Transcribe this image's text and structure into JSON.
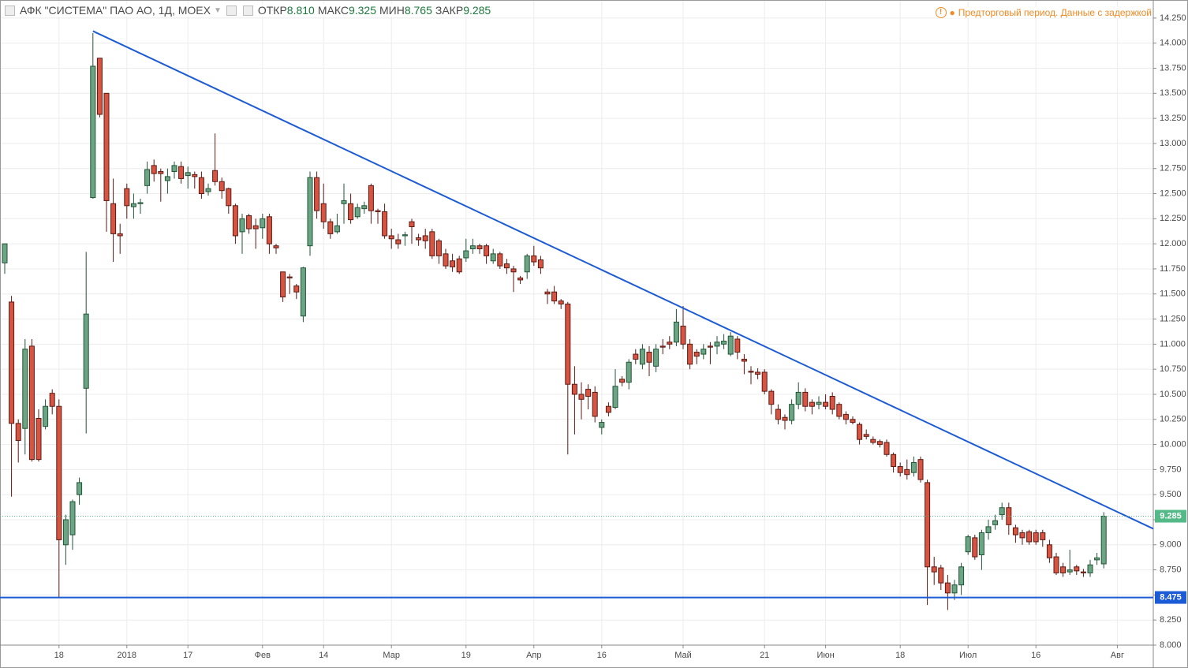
{
  "chart_data": {
    "type": "candlestick",
    "title": "АФК \"СИСТЕМА\" ПАО АО, 1Д, МОЕХ",
    "stats": [
      {
        "name": "ОТКР",
        "value": {
          "value": 8.81,
          "label": "8.810"
        }
      },
      {
        "name": "МАКС",
        "value": {
          "value": 9.325,
          "label": "9.325"
        }
      },
      {
        "name": "МИН",
        "value": {
          "value": 8.765,
          "label": "8.765"
        }
      },
      {
        "name": "ЗАКР",
        "value": {
          "value": 9.285,
          "label": "9.285"
        }
      }
    ],
    "notice": "Предторговый период. Данные с задержкой",
    "categories": [
      null,
      null,
      null,
      null,
      null,
      null,
      null,
      null,
      "18",
      null,
      null,
      null,
      null,
      null,
      null,
      null,
      null,
      null,
      "2018",
      null,
      null,
      null,
      null,
      null,
      null,
      null,
      null,
      "17",
      null,
      null,
      null,
      null,
      null,
      null,
      null,
      null,
      null,
      null,
      "Фев",
      null,
      null,
      null,
      null,
      null,
      null,
      null,
      null,
      "14",
      null,
      null,
      null,
      null,
      null,
      null,
      null,
      null,
      null,
      "Мар",
      null,
      null,
      null,
      null,
      null,
      null,
      null,
      null,
      null,
      null,
      "19",
      null,
      null,
      null,
      null,
      null,
      null,
      null,
      null,
      null,
      "Апр",
      null,
      null,
      null,
      null,
      null,
      null,
      null,
      null,
      null,
      "16",
      null,
      null,
      null,
      null,
      null,
      null,
      null,
      null,
      null,
      null,
      null,
      "Май",
      null,
      null,
      null,
      null,
      null,
      null,
      null,
      null,
      null,
      null,
      null,
      "21",
      null,
      null,
      null,
      null,
      null,
      null,
      null,
      null,
      "Июн",
      null,
      null,
      null,
      null,
      null,
      null,
      null,
      null,
      null,
      null,
      "18",
      null,
      null,
      null,
      null,
      null,
      null,
      null,
      null,
      null,
      "Июл",
      null,
      null,
      null,
      null,
      null,
      null,
      null,
      null,
      null,
      "16",
      null,
      null,
      null,
      null,
      null,
      null,
      null,
      null,
      null,
      null,
      null,
      "Авг",
      null,
      null,
      null,
      null,
      null
    ],
    "open": [
      11.81,
      11.42,
      10.21,
      10.16,
      10.98,
      10.26,
      10.18,
      10.51,
      10.38,
      9.0,
      9.1,
      9.5,
      10.56,
      12.46,
      13.85,
      13.5,
      12.4,
      12.1,
      12.55,
      12.37,
      12.4,
      12.58,
      12.78,
      12.72,
      12.63,
      12.72,
      12.77,
      12.68,
      12.69,
      12.66,
      12.52,
      12.73,
      12.62,
      12.55,
      12.38,
      12.12,
      12.28,
      12.18,
      12.16,
      12.27,
      11.98,
      11.72,
      11.67,
      11.58,
      11.28,
      11.98,
      12.66,
      12.4,
      12.22,
      12.12,
      12.4,
      12.4,
      12.27,
      12.35,
      12.58,
      12.33,
      12.32,
      12.08,
      12.04,
      12.08,
      12.22,
      12.06,
      12.08,
      12.12,
      12.03,
      11.9,
      11.83,
      11.85,
      11.86,
      11.95,
      11.98,
      11.98,
      11.83,
      11.9,
      11.8,
      11.75,
      11.66,
      11.72,
      11.88,
      11.84,
      11.52,
      11.52,
      11.43,
      11.4,
      10.6,
      10.5,
      10.55,
      10.52,
      10.17,
      10.38,
      10.37,
      10.65,
      10.62,
      10.9,
      10.8,
      10.92,
      10.78,
      10.98,
      11.02,
      11.02,
      11.18,
      11.0,
      10.92,
      10.9,
      10.98,
      10.98,
      11.0,
      10.9,
      11.05,
      10.85,
      10.73,
      10.72,
      10.72,
      10.53,
      10.35,
      10.27,
      10.24,
      10.4,
      10.52,
      10.42,
      10.4,
      10.42,
      10.48,
      10.4,
      10.3,
      10.25,
      10.2,
      10.1,
      10.05,
      10.03,
      10.02,
      9.9,
      9.78,
      9.75,
      9.72,
      9.85,
      9.62,
      8.78,
      8.77,
      8.62,
      8.52,
      8.6,
      8.93,
      9.07,
      8.9,
      9.12,
      9.2,
      9.3,
      9.37,
      9.17,
      9.12,
      9.13,
      9.12,
      9.12,
      9.0,
      8.88,
      8.78,
      8.73,
      8.78,
      8.73,
      8.72,
      8.85,
      8.81,
      null,
      null,
      null,
      null,
      null,
      null,
      null
    ],
    "high": [
      12.0,
      11.48,
      10.25,
      11.05,
      11.05,
      10.35,
      10.45,
      10.55,
      10.45,
      9.3,
      9.45,
      9.67,
      11.92,
      14.1,
      13.85,
      13.5,
      12.65,
      12.2,
      12.6,
      12.5,
      12.45,
      12.82,
      12.84,
      12.75,
      12.75,
      12.82,
      12.82,
      12.77,
      12.72,
      12.72,
      12.6,
      13.1,
      12.66,
      12.56,
      12.4,
      12.3,
      12.3,
      12.25,
      12.3,
      12.3,
      12.0,
      11.72,
      11.7,
      11.6,
      11.77,
      12.72,
      12.72,
      12.6,
      12.25,
      12.3,
      12.6,
      12.5,
      12.4,
      12.42,
      12.6,
      12.35,
      12.4,
      12.15,
      12.1,
      12.12,
      12.25,
      12.1,
      12.15,
      12.15,
      12.05,
      11.95,
      11.9,
      11.88,
      12.05,
      12.05,
      12.0,
      12.0,
      11.95,
      11.92,
      11.85,
      11.78,
      11.68,
      11.9,
      11.98,
      11.88,
      11.55,
      11.58,
      11.45,
      11.42,
      10.78,
      10.62,
      10.6,
      10.58,
      10.25,
      10.42,
      10.75,
      10.68,
      10.85,
      10.95,
      11.0,
      10.98,
      11.0,
      11.05,
      11.08,
      11.35,
      11.38,
      11.05,
      10.95,
      11.0,
      11.02,
      11.08,
      11.1,
      11.12,
      11.08,
      10.9,
      10.78,
      10.76,
      10.75,
      10.55,
      10.4,
      10.3,
      10.45,
      10.62,
      10.56,
      10.45,
      10.48,
      10.5,
      10.52,
      10.42,
      10.33,
      10.28,
      10.22,
      10.15,
      10.08,
      10.05,
      10.05,
      9.92,
      9.82,
      9.85,
      9.88,
      9.88,
      9.65,
      8.88,
      8.8,
      8.7,
      8.65,
      8.82,
      9.1,
      9.1,
      9.15,
      9.25,
      9.3,
      9.42,
      9.42,
      9.2,
      9.15,
      9.15,
      9.15,
      9.15,
      9.05,
      8.92,
      8.82,
      8.95,
      8.8,
      8.76,
      8.85,
      8.92,
      9.325,
      null,
      null,
      null,
      null,
      null,
      null,
      null
    ],
    "low": [
      11.7,
      9.48,
      9.82,
      9.9,
      9.83,
      9.83,
      10.15,
      10.3,
      8.48,
      8.8,
      8.95,
      9.4,
      10.11,
      12.45,
      13.26,
      12.12,
      11.82,
      11.9,
      12.25,
      12.25,
      12.3,
      12.5,
      12.62,
      12.42,
      12.5,
      12.65,
      12.6,
      12.55,
      12.55,
      12.45,
      12.48,
      12.58,
      12.45,
      12.3,
      12.0,
      11.9,
      12.1,
      11.95,
      12.05,
      11.9,
      11.9,
      11.42,
      11.5,
      11.45,
      11.22,
      11.88,
      12.25,
      12.15,
      12.05,
      12.1,
      12.2,
      12.2,
      12.25,
      12.3,
      12.2,
      12.2,
      12.05,
      11.95,
      11.95,
      11.98,
      12.0,
      11.98,
      11.95,
      11.85,
      11.8,
      11.75,
      11.72,
      11.7,
      11.82,
      11.9,
      11.9,
      11.8,
      11.8,
      11.75,
      11.7,
      11.52,
      11.6,
      11.65,
      11.78,
      11.7,
      11.4,
      11.4,
      11.35,
      9.9,
      10.1,
      10.25,
      10.35,
      10.22,
      10.1,
      10.28,
      10.35,
      10.58,
      10.55,
      10.8,
      10.75,
      10.68,
      10.72,
      10.9,
      10.95,
      10.98,
      10.95,
      10.75,
      10.8,
      10.85,
      10.8,
      10.9,
      10.95,
      10.88,
      10.85,
      10.7,
      10.6,
      10.65,
      10.5,
      10.3,
      10.2,
      10.15,
      10.2,
      10.35,
      10.33,
      10.3,
      10.35,
      10.35,
      10.3,
      10.25,
      10.2,
      10.2,
      10.0,
      10.05,
      10.0,
      9.97,
      9.88,
      9.72,
      9.68,
      9.65,
      9.68,
      9.62,
      8.4,
      8.6,
      8.55,
      8.35,
      8.45,
      8.5,
      8.9,
      8.85,
      8.75,
      9.05,
      9.15,
      9.25,
      9.1,
      9.02,
      9.0,
      9.0,
      9.0,
      8.98,
      8.82,
      8.7,
      8.68,
      8.7,
      8.7,
      8.68,
      8.68,
      8.8,
      8.765,
      null,
      null,
      null,
      null,
      null,
      null,
      null
    ],
    "close": [
      12.0,
      10.21,
      10.04,
      10.95,
      9.85,
      9.85,
      10.38,
      10.38,
      9.05,
      9.25,
      9.43,
      9.62,
      11.3,
      13.77,
      13.29,
      12.43,
      12.1,
      12.08,
      12.38,
      12.4,
      12.41,
      12.74,
      12.7,
      12.7,
      12.67,
      12.78,
      12.65,
      12.71,
      12.67,
      12.5,
      12.55,
      12.62,
      12.53,
      12.38,
      12.08,
      12.25,
      12.15,
      12.15,
      12.25,
      12.0,
      11.96,
      11.47,
      11.66,
      11.52,
      11.76,
      12.66,
      12.33,
      12.22,
      12.1,
      12.18,
      12.43,
      12.24,
      12.36,
      12.38,
      12.33,
      12.32,
      12.08,
      12.05,
      12.0,
      12.09,
      12.17,
      12.04,
      12.03,
      11.88,
      11.88,
      11.78,
      11.77,
      11.72,
      11.93,
      11.98,
      11.95,
      11.88,
      11.9,
      11.78,
      11.76,
      11.72,
      11.64,
      11.88,
      11.82,
      11.76,
      11.5,
      11.43,
      11.4,
      10.6,
      10.5,
      10.45,
      10.48,
      10.28,
      10.22,
      10.32,
      10.58,
      10.62,
      10.82,
      10.85,
      10.95,
      10.82,
      10.95,
      10.97,
      11.0,
      11.22,
      11.0,
      10.8,
      10.88,
      10.95,
      10.97,
      11.02,
      11.03,
      11.08,
      10.92,
      10.83,
      10.72,
      10.7,
      10.53,
      10.4,
      10.25,
      10.24,
      10.4,
      10.52,
      10.38,
      10.38,
      10.42,
      10.38,
      10.35,
      10.28,
      10.25,
      10.22,
      10.05,
      10.08,
      10.02,
      10.0,
      9.9,
      9.78,
      9.72,
      9.7,
      9.82,
      9.65,
      8.78,
      8.73,
      8.62,
      8.52,
      8.6,
      8.78,
      9.08,
      8.88,
      9.12,
      9.18,
      9.24,
      9.37,
      9.2,
      9.1,
      9.07,
      9.03,
      9.03,
      9.05,
      8.87,
      8.72,
      8.72,
      8.75,
      8.74,
      8.72,
      8.8,
      8.87,
      9.285,
      null,
      null,
      null,
      null,
      null,
      null,
      null
    ],
    "up_color": "#6ba583",
    "up_border": "#225437",
    "down_color": "#d75442",
    "down_border": "#5b1a13",
    "ylim": [
      8.0,
      14.43
    ],
    "yticks": [
      {
        "value": 8.0,
        "label": "8.000"
      },
      {
        "value": 8.25,
        "label": "8.250"
      },
      {
        "value": 8.5,
        "label": "8.500"
      },
      {
        "value": 8.75,
        "label": "8.750"
      },
      {
        "value": 9.0,
        "label": "9.000"
      },
      {
        "value": 9.25,
        "label": "9.250"
      },
      {
        "value": 9.5,
        "label": "9.500"
      },
      {
        "value": 9.75,
        "label": "9.750"
      },
      {
        "value": 10.0,
        "label": "10.000"
      },
      {
        "value": 10.25,
        "label": "10.250"
      },
      {
        "value": 10.5,
        "label": "10.500"
      },
      {
        "value": 10.75,
        "label": "10.750"
      },
      {
        "value": 11.0,
        "label": "11.000"
      },
      {
        "value": 11.25,
        "label": "11.250"
      },
      {
        "value": 11.5,
        "label": "11.500"
      },
      {
        "value": 11.75,
        "label": "11.750"
      },
      {
        "value": 12.0,
        "label": "12.000"
      },
      {
        "value": 12.25,
        "label": "12.250"
      },
      {
        "value": 12.5,
        "label": "12.500"
      },
      {
        "value": 12.75,
        "label": "12.750"
      },
      {
        "value": 13.0,
        "label": "13.000"
      },
      {
        "value": 13.25,
        "label": "13.250"
      },
      {
        "value": 13.5,
        "label": "13.500"
      },
      {
        "value": 13.75,
        "label": "13.750"
      },
      {
        "value": 14.0,
        "label": "14.000"
      },
      {
        "value": 14.25,
        "label": "14.250"
      }
    ],
    "grid": true,
    "trendline": {
      "x": [
        13,
        169.3
      ],
      "y": [
        14.12,
        9.16
      ],
      "color": "#1c5bd6"
    },
    "hline": {
      "value": 8.475,
      "label": "8.475",
      "color": "#1c5bd6"
    },
    "last_price": {
      "value": 9.285,
      "label": "9.285",
      "color": "#53b987"
    }
  }
}
